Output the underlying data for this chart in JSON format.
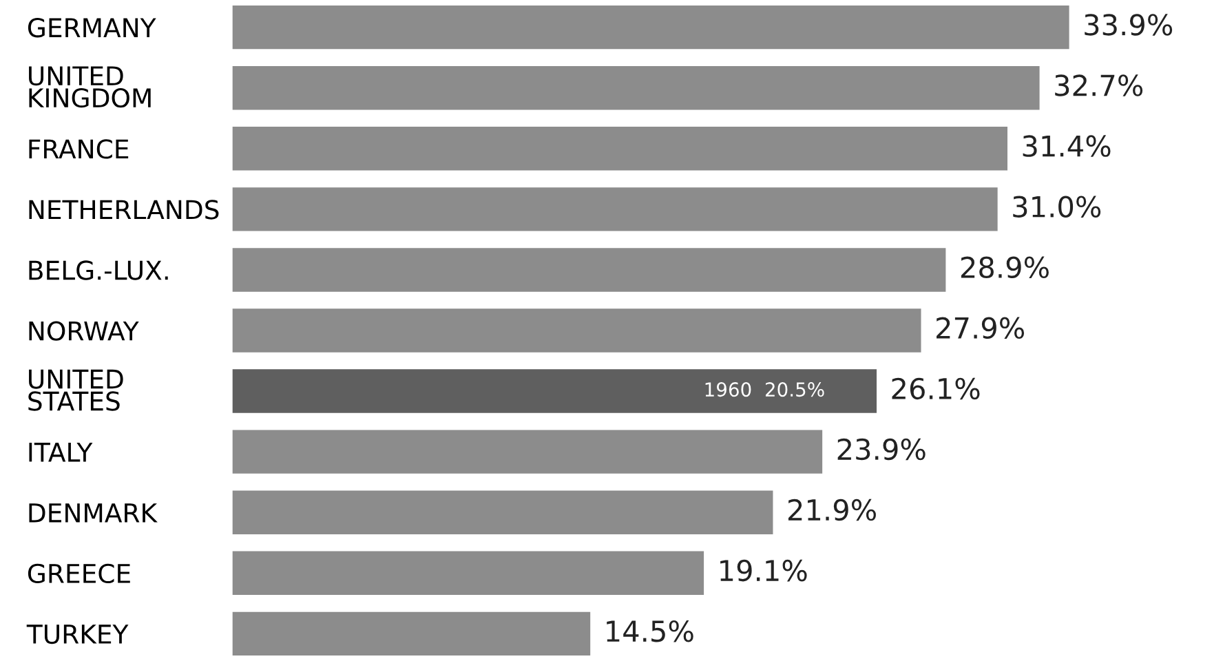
{
  "chart_data": {
    "type": "bar",
    "orientation": "horizontal",
    "categories": [
      "GERMANY",
      "UNITED\nKINGDOM",
      "FRANCE",
      "NETHERLANDS",
      "BELG.-LUX.",
      "NORWAY",
      "UNITED\nSTATES",
      "ITALY",
      "DENMARK",
      "GREECE",
      "TURKEY"
    ],
    "values": [
      33.9,
      32.7,
      31.4,
      31.0,
      28.9,
      27.9,
      26.1,
      23.9,
      21.9,
      19.1,
      14.5
    ],
    "value_labels": [
      "33.9%",
      "32.7%",
      "31.4%",
      "31.0%",
      "28.9%",
      "27.9%",
      "26.1%",
      "23.9%",
      "21.9%",
      "19.1%",
      "14.5%"
    ],
    "colors": [
      "#8c8c8c",
      "#8c8c8c",
      "#8c8c8c",
      "#8c8c8c",
      "#8c8c8c",
      "#8c8c8c",
      "#5f5f5f",
      "#8c8c8c",
      "#8c8c8c",
      "#8c8c8c",
      "#8c8c8c"
    ],
    "annotations": [
      "1960  20.5%"
    ],
    "grid": false,
    "tick_labels": "y"
  }
}
